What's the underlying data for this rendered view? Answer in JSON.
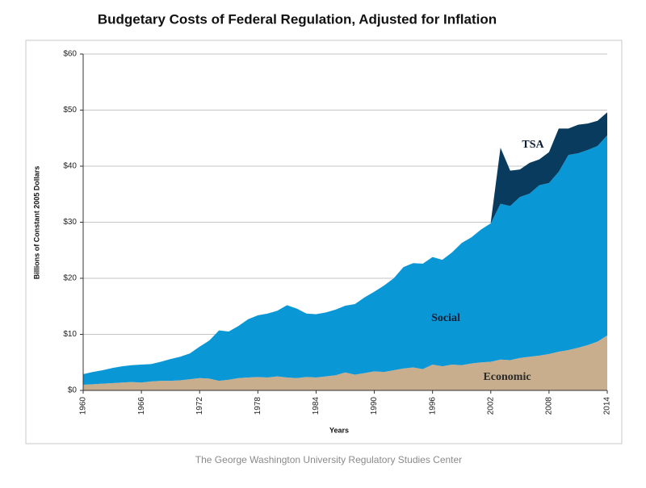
{
  "chart_data": {
    "type": "stacked-area",
    "title": "Budgetary Costs of Federal Regulation, Adjusted for Inflation",
    "x_label": "Years",
    "y_label": "Billions of Constant 2005 Dollars",
    "source": "The George Washington University Regulatory Studies Center",
    "x": [
      1960,
      1961,
      1962,
      1963,
      1964,
      1965,
      1966,
      1967,
      1968,
      1969,
      1970,
      1971,
      1972,
      1973,
      1974,
      1975,
      1976,
      1977,
      1978,
      1979,
      1980,
      1981,
      1982,
      1983,
      1984,
      1985,
      1986,
      1987,
      1988,
      1989,
      1990,
      1991,
      1992,
      1993,
      1994,
      1995,
      1996,
      1997,
      1998,
      1999,
      2000,
      2001,
      2002,
      2003,
      2004,
      2005,
      2006,
      2007,
      2008,
      2009,
      2010,
      2011,
      2012,
      2013,
      2014
    ],
    "xlim": [
      1960,
      2014
    ],
    "xticks": [
      1960,
      1966,
      1972,
      1978,
      1984,
      1990,
      1996,
      2002,
      2008,
      2014
    ],
    "ylim": [
      0,
      60
    ],
    "yticks": [
      {
        "value": 0,
        "label": "$0"
      },
      {
        "value": 10,
        "label": "$10"
      },
      {
        "value": 20,
        "label": "$20"
      },
      {
        "value": 30,
        "label": "$30"
      },
      {
        "value": 40,
        "label": "$40"
      },
      {
        "value": 50,
        "label": "$50"
      },
      {
        "value": 60,
        "label": "$60"
      }
    ],
    "grid": true,
    "series": [
      {
        "name": "Economic",
        "color": "#c8ae8c",
        "values": [
          1.0,
          1.1,
          1.2,
          1.3,
          1.4,
          1.5,
          1.4,
          1.6,
          1.7,
          1.7,
          1.8,
          2.0,
          2.2,
          2.1,
          1.7,
          1.9,
          2.2,
          2.3,
          2.4,
          2.3,
          2.5,
          2.3,
          2.2,
          2.4,
          2.3,
          2.5,
          2.7,
          3.2,
          2.8,
          3.1,
          3.4,
          3.3,
          3.6,
          3.9,
          4.1,
          3.8,
          4.6,
          4.3,
          4.6,
          4.5,
          4.8,
          5.0,
          5.1,
          5.5,
          5.4,
          5.8,
          6.0,
          6.2,
          6.5,
          6.9,
          7.2,
          7.6,
          8.1,
          8.7,
          9.8
        ]
      },
      {
        "name": "Social",
        "color": "#0a97d6",
        "values": [
          1.9,
          2.2,
          2.4,
          2.7,
          2.9,
          3.0,
          3.2,
          3.1,
          3.4,
          3.9,
          4.2,
          4.6,
          5.6,
          6.8,
          9.0,
          8.6,
          9.3,
          10.4,
          11.0,
          11.4,
          11.7,
          12.9,
          12.4,
          11.3,
          11.3,
          11.4,
          11.7,
          11.9,
          12.6,
          13.5,
          14.2,
          15.4,
          16.4,
          18.1,
          18.6,
          18.8,
          19.2,
          19.0,
          20.0,
          21.8,
          22.5,
          23.7,
          24.7,
          27.8,
          27.5,
          28.7,
          29.1,
          30.4,
          30.5,
          32.1,
          34.8,
          34.7,
          34.8,
          34.9,
          35.7
        ]
      },
      {
        "name": "TSA",
        "color": "#083b5e",
        "values": [
          null,
          null,
          null,
          null,
          null,
          null,
          null,
          null,
          null,
          null,
          null,
          null,
          null,
          null,
          null,
          null,
          null,
          null,
          null,
          null,
          null,
          null,
          null,
          null,
          null,
          null,
          null,
          null,
          null,
          null,
          null,
          null,
          null,
          null,
          null,
          null,
          null,
          null,
          null,
          null,
          null,
          null,
          0.2,
          10.0,
          6.3,
          4.9,
          5.5,
          4.6,
          5.5,
          7.7,
          4.7,
          5.1,
          4.7,
          4.5,
          4.1
        ]
      }
    ]
  }
}
